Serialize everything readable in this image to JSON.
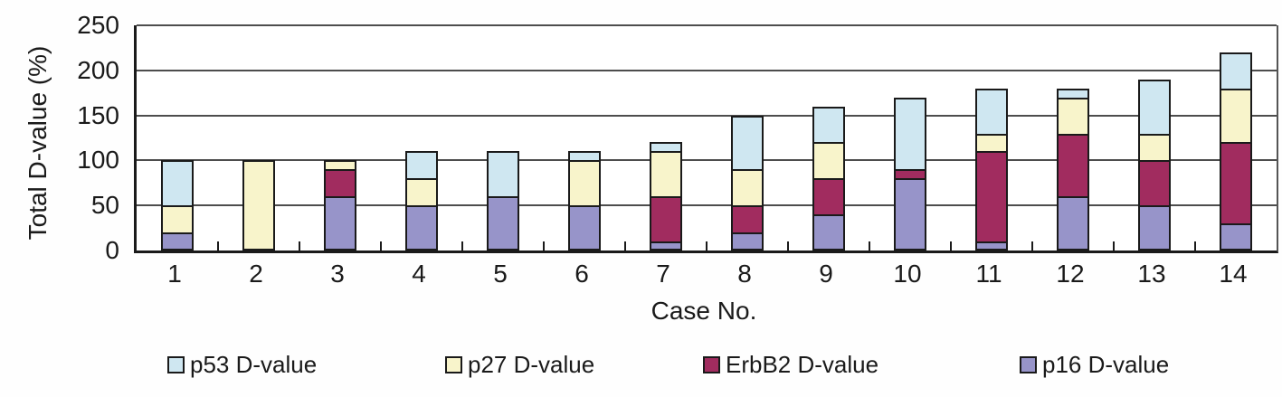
{
  "chart_data": {
    "type": "bar",
    "stacked": true,
    "title": "",
    "xlabel": "Case No.",
    "ylabel": "Total D-value (%)",
    "categories": [
      "1",
      "2",
      "3",
      "4",
      "5",
      "6",
      "7",
      "8",
      "9",
      "10",
      "11",
      "12",
      "13",
      "14"
    ],
    "series": [
      {
        "name": "p16 D-value",
        "color": "#9794c9",
        "values": [
          20,
          0,
          60,
          50,
          60,
          50,
          10,
          20,
          40,
          80,
          10,
          60,
          50,
          30
        ]
      },
      {
        "name": "ErbB2 D-value",
        "color": "#a12c5f",
        "values": [
          0,
          0,
          30,
          0,
          0,
          0,
          50,
          30,
          40,
          10,
          100,
          70,
          50,
          90
        ]
      },
      {
        "name": "p27 D-value",
        "color": "#f8f4cb",
        "values": [
          30,
          100,
          10,
          30,
          0,
          50,
          50,
          40,
          40,
          0,
          20,
          40,
          30,
          60
        ]
      },
      {
        "name": "p53 D-value",
        "color": "#cfe7f1",
        "values": [
          50,
          0,
          0,
          30,
          50,
          10,
          10,
          60,
          40,
          80,
          50,
          10,
          60,
          40
        ]
      }
    ],
    "stack_order_note": "bottom to top: p16, ErbB2, p27, p53",
    "legend_order": [
      "p53 D-value",
      "p27 D-value",
      "ErbB2 D-value",
      "p16 D-value"
    ],
    "ylim": [
      0,
      250
    ],
    "yticks": [
      0,
      50,
      100,
      150,
      200,
      250
    ],
    "grid": true,
    "legend_position": "bottom"
  }
}
